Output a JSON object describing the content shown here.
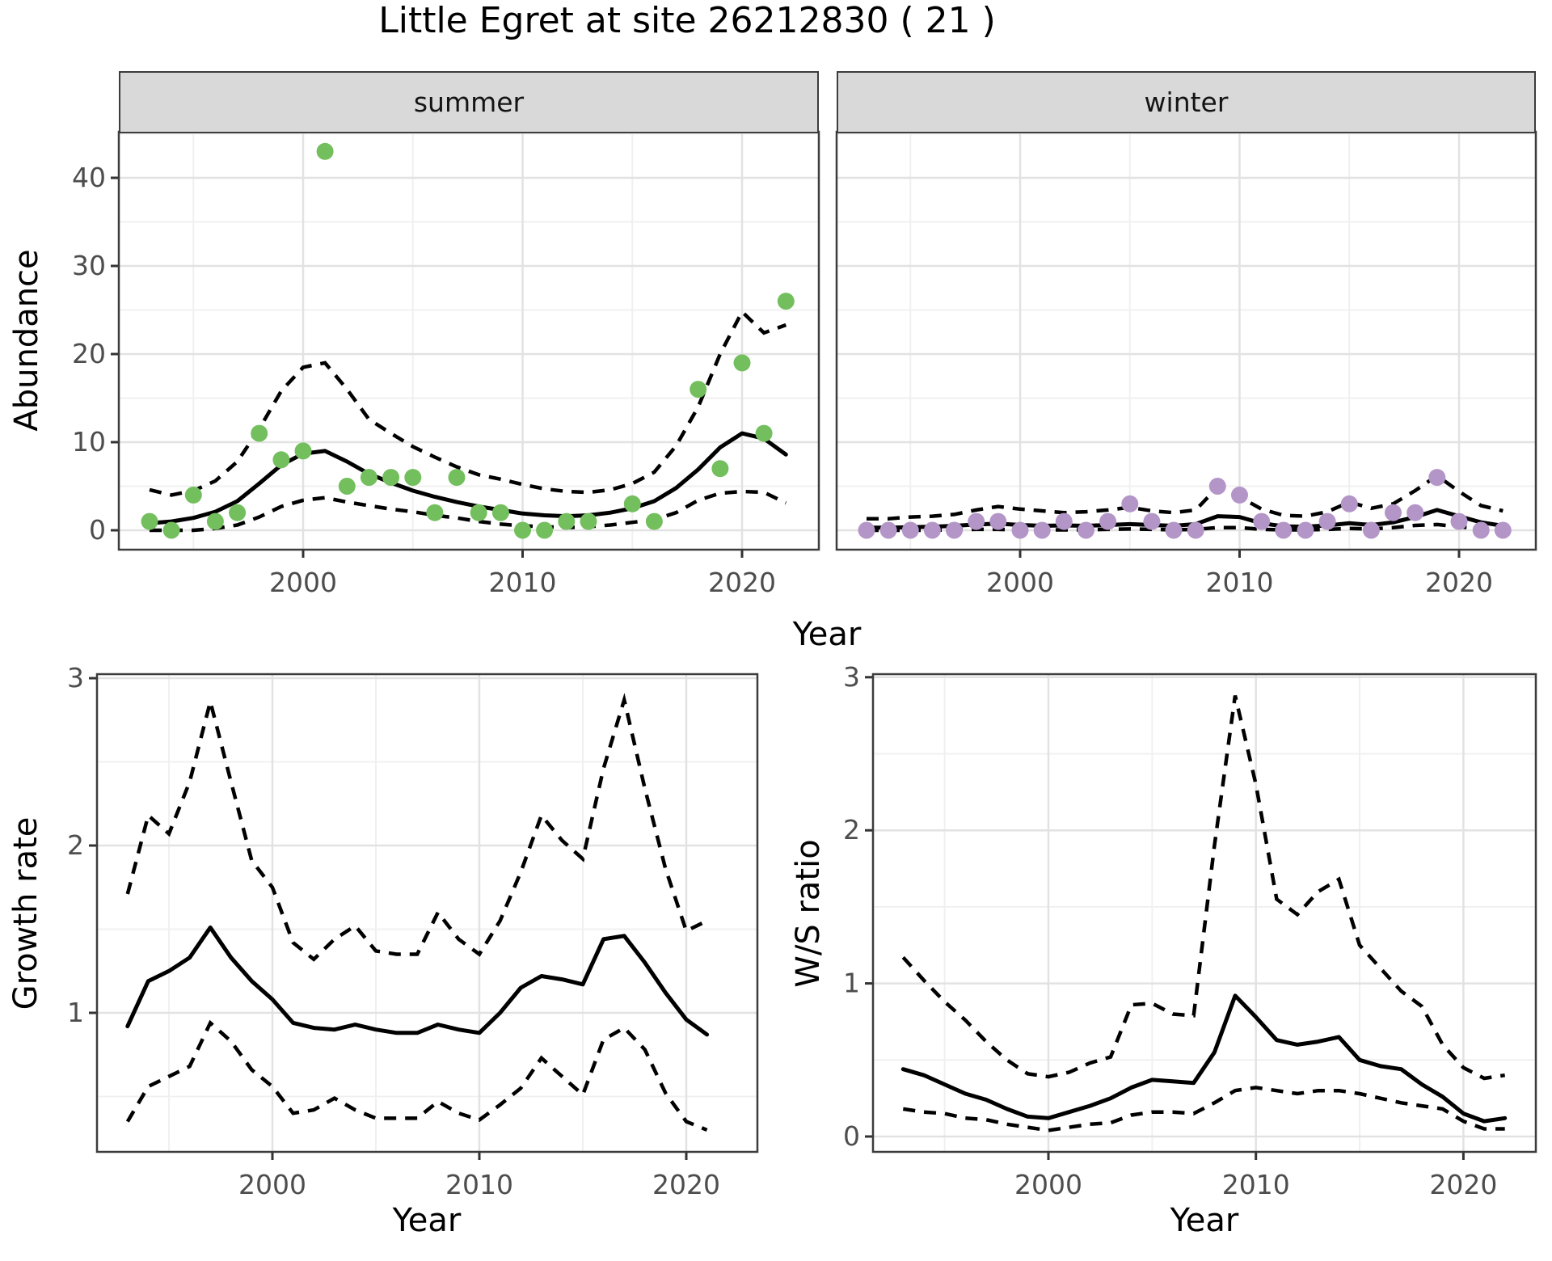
{
  "title": "Little Egret at site 26212830 ( 21 )",
  "facets": {
    "summer": "summer",
    "winter": "winter"
  },
  "axis_titles": {
    "abundance": "Abundance",
    "year_top": "Year",
    "growth": "Growth rate",
    "ws": "W/S ratio",
    "year_growth": "Year",
    "year_ws": "Year"
  },
  "colors": {
    "summer_point": "#73bf5e",
    "winter_point": "#b495c8",
    "trend_line": "#000000",
    "ci_line": "#000000",
    "grid_major": "#e2e2e2",
    "grid_minor": "#f0f0f0",
    "panel_border": "#3c3c3c",
    "strip_bg": "#d9d9d9",
    "tick_label": "#4d4d4d",
    "tick_mark": "#333333"
  },
  "chart_data": [
    {
      "type": "scatter",
      "facet": "summer",
      "xlabel": "Year",
      "ylabel": "Abundance",
      "xticks": [
        2000,
        2010,
        2020
      ],
      "yticks": [
        0,
        10,
        20,
        30,
        40
      ],
      "xlim": [
        1991.5,
        2023.5
      ],
      "ylim": [
        -2,
        45.2
      ],
      "x": [
        1993,
        1994,
        1995,
        1996,
        1997,
        1998,
        1999,
        2000,
        2001,
        2002,
        2003,
        2004,
        2005,
        2006,
        2007,
        2008,
        2009,
        2010,
        2011,
        2012,
        2013,
        2014,
        2015,
        2016,
        2017,
        2018,
        2019,
        2020,
        2021,
        2022
      ],
      "points": [
        1,
        0,
        4,
        1,
        2,
        11,
        8,
        9,
        43,
        5,
        6,
        6,
        6,
        2,
        6,
        2,
        2,
        0,
        0,
        1,
        1,
        null,
        3,
        1,
        null,
        16,
        7,
        19,
        11,
        26
      ],
      "series": [
        {
          "name": "trend",
          "style": "solid",
          "values": [
            0.8,
            1.0,
            1.4,
            2.1,
            3.3,
            5.3,
            7.4,
            8.7,
            9.0,
            7.8,
            6.4,
            5.4,
            4.5,
            3.8,
            3.2,
            2.7,
            2.3,
            1.9,
            1.7,
            1.6,
            1.7,
            2.0,
            2.5,
            3.3,
            4.8,
            6.9,
            9.4,
            11.0,
            10.4,
            8.6
          ]
        },
        {
          "name": "upper_ci",
          "style": "dashed",
          "values": [
            4.6,
            4.0,
            4.5,
            5.6,
            7.8,
            11.5,
            15.8,
            18.5,
            19.0,
            16.0,
            12.6,
            11.0,
            9.5,
            8.3,
            7.2,
            6.3,
            5.8,
            5.2,
            4.7,
            4.4,
            4.3,
            4.6,
            5.3,
            6.6,
            9.6,
            14.0,
            20.0,
            24.8,
            22.4,
            23.3
          ]
        },
        {
          "name": "lower_ci",
          "style": "dashed",
          "values": [
            0.0,
            0.0,
            0.0,
            0.2,
            0.6,
            1.5,
            2.7,
            3.4,
            3.7,
            3.2,
            2.8,
            2.4,
            2.1,
            1.7,
            1.4,
            1.0,
            0.7,
            0.5,
            0.4,
            0.3,
            0.4,
            0.6,
            0.9,
            1.2,
            2.0,
            3.4,
            4.2,
            4.4,
            4.3,
            3.1
          ]
        }
      ]
    },
    {
      "type": "scatter",
      "facet": "winter",
      "xlabel": "Year",
      "ylabel": "Abundance",
      "xticks": [
        2000,
        2010,
        2020
      ],
      "yticks": [
        0,
        10,
        20,
        30,
        40
      ],
      "xlim": [
        1991.5,
        2023.5
      ],
      "ylim": [
        -2,
        45.2
      ],
      "x": [
        1993,
        1994,
        1995,
        1996,
        1997,
        1998,
        1999,
        2000,
        2001,
        2002,
        2003,
        2004,
        2005,
        2006,
        2007,
        2008,
        2009,
        2010,
        2011,
        2012,
        2013,
        2014,
        2015,
        2016,
        2017,
        2018,
        2019,
        2020,
        2021,
        2022
      ],
      "points": [
        0,
        0,
        0,
        0,
        0,
        1,
        1,
        0,
        0,
        1,
        0,
        1,
        3,
        1,
        0,
        0,
        5,
        4,
        1,
        0,
        0,
        1,
        3,
        0,
        2,
        2,
        6,
        1,
        0,
        0
      ],
      "series": [
        {
          "name": "trend",
          "style": "solid",
          "values": [
            0.3,
            0.3,
            0.35,
            0.4,
            0.5,
            0.65,
            0.75,
            0.6,
            0.5,
            0.55,
            0.5,
            0.6,
            0.7,
            0.6,
            0.5,
            0.7,
            1.6,
            1.5,
            0.8,
            0.45,
            0.4,
            0.55,
            0.8,
            0.6,
            0.9,
            1.5,
            2.3,
            1.6,
            0.9,
            0.5
          ]
        },
        {
          "name": "upper_ci",
          "style": "dashed",
          "values": [
            1.3,
            1.3,
            1.5,
            1.6,
            1.8,
            2.3,
            2.7,
            2.4,
            2.2,
            2.0,
            2.1,
            2.3,
            2.6,
            2.2,
            2.0,
            2.3,
            4.9,
            3.8,
            2.4,
            1.7,
            1.6,
            2.1,
            3.2,
            2.5,
            3.0,
            4.5,
            6.2,
            4.4,
            2.8,
            2.2
          ]
        },
        {
          "name": "lower_ci",
          "style": "dashed",
          "values": [
            0,
            0,
            0,
            0,
            0.05,
            0.1,
            0.1,
            0.05,
            0.05,
            0.05,
            0.05,
            0.1,
            0.15,
            0.1,
            0.05,
            0.1,
            0.3,
            0.3,
            0.1,
            0.05,
            0.05,
            0.1,
            0.2,
            0.15,
            0.3,
            0.55,
            0.65,
            0.4,
            0.15,
            0.05
          ]
        }
      ]
    },
    {
      "type": "line",
      "facet": "growth_rate",
      "xlabel": "Year",
      "ylabel": "Growth rate",
      "xticks": [
        2000,
        2010,
        2020
      ],
      "yticks": [
        1,
        2,
        3
      ],
      "xlim": [
        1991.5,
        2023.5
      ],
      "ylim": [
        0.17,
        3.03
      ],
      "x": [
        1993,
        1994,
        1995,
        1996,
        1997,
        1998,
        1999,
        2000,
        2001,
        2002,
        2003,
        2004,
        2005,
        2006,
        2007,
        2008,
        2009,
        2010,
        2011,
        2012,
        2013,
        2014,
        2015,
        2016,
        2017,
        2018,
        2019,
        2020,
        2021
      ],
      "series": [
        {
          "name": "fit",
          "style": "solid",
          "values": [
            0.92,
            1.19,
            1.25,
            1.33,
            1.51,
            1.33,
            1.19,
            1.08,
            0.94,
            0.91,
            0.9,
            0.93,
            0.9,
            0.88,
            0.88,
            0.93,
            0.9,
            0.88,
            1.0,
            1.15,
            1.22,
            1.2,
            1.17,
            1.44,
            1.46,
            1.3,
            1.12,
            0.96,
            0.87
          ]
        },
        {
          "name": "upper_ci",
          "style": "dashed",
          "values": [
            1.71,
            2.18,
            2.07,
            2.38,
            2.86,
            2.38,
            1.91,
            1.75,
            1.42,
            1.32,
            1.44,
            1.52,
            1.37,
            1.35,
            1.35,
            1.6,
            1.44,
            1.35,
            1.55,
            1.84,
            2.18,
            2.03,
            1.92,
            2.46,
            2.87,
            2.34,
            1.86,
            1.49,
            1.55
          ]
        },
        {
          "name": "lower_ci",
          "style": "dashed",
          "values": [
            0.35,
            0.56,
            0.62,
            0.68,
            0.94,
            0.83,
            0.66,
            0.56,
            0.4,
            0.42,
            0.49,
            0.42,
            0.37,
            0.37,
            0.37,
            0.47,
            0.4,
            0.36,
            0.45,
            0.55,
            0.73,
            0.62,
            0.51,
            0.84,
            0.91,
            0.78,
            0.52,
            0.35,
            0.3
          ]
        }
      ]
    },
    {
      "type": "line",
      "facet": "ws_ratio",
      "xlabel": "Year",
      "ylabel": "W/S ratio",
      "xticks": [
        2000,
        2010,
        2020
      ],
      "yticks": [
        0,
        1,
        2,
        3
      ],
      "xlim": [
        1991.5,
        2023.5
      ],
      "ylim": [
        -0.1,
        3.02
      ],
      "x": [
        1993,
        1994,
        1995,
        1996,
        1997,
        1998,
        1999,
        2000,
        2001,
        2002,
        2003,
        2004,
        2005,
        2006,
        2007,
        2008,
        2009,
        2010,
        2011,
        2012,
        2013,
        2014,
        2015,
        2016,
        2017,
        2018,
        2019,
        2020,
        2021,
        2022
      ],
      "series": [
        {
          "name": "fit",
          "style": "solid",
          "values": [
            0.44,
            0.4,
            0.34,
            0.28,
            0.24,
            0.18,
            0.13,
            0.12,
            0.16,
            0.2,
            0.25,
            0.32,
            0.37,
            0.36,
            0.35,
            0.55,
            0.92,
            0.78,
            0.63,
            0.6,
            0.62,
            0.65,
            0.5,
            0.46,
            0.44,
            0.34,
            0.26,
            0.15,
            0.1,
            0.12
          ]
        },
        {
          "name": "upper_ci",
          "style": "dashed",
          "values": [
            1.17,
            1.02,
            0.88,
            0.76,
            0.62,
            0.5,
            0.41,
            0.39,
            0.42,
            0.48,
            0.52,
            0.86,
            0.87,
            0.8,
            0.79,
            1.9,
            2.88,
            2.3,
            1.55,
            1.45,
            1.6,
            1.68,
            1.25,
            1.1,
            0.95,
            0.85,
            0.6,
            0.45,
            0.38,
            0.4
          ]
        },
        {
          "name": "lower_ci",
          "style": "dashed",
          "values": [
            0.18,
            0.16,
            0.15,
            0.12,
            0.11,
            0.08,
            0.06,
            0.04,
            0.06,
            0.08,
            0.09,
            0.14,
            0.16,
            0.16,
            0.15,
            0.22,
            0.3,
            0.32,
            0.3,
            0.28,
            0.3,
            0.3,
            0.28,
            0.25,
            0.22,
            0.2,
            0.18,
            0.1,
            0.05,
            0.05
          ]
        }
      ]
    }
  ]
}
